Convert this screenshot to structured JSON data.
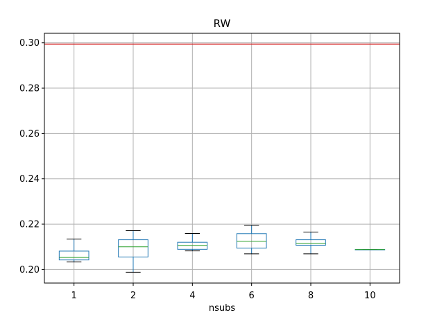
{
  "chart_data": {
    "type": "box",
    "title": "RW",
    "xlabel": "nsubs",
    "ylabel": "",
    "categories": [
      "1",
      "2",
      "4",
      "6",
      "8",
      "10"
    ],
    "ylim": [
      0.194,
      0.3042
    ],
    "yticks": [
      0.2,
      0.22,
      0.24,
      0.26,
      0.28,
      0.3
    ],
    "ytick_labels": [
      "0.20",
      "0.22",
      "0.24",
      "0.26",
      "0.28",
      "0.30"
    ],
    "grid": true,
    "boxes": [
      {
        "category": "1",
        "whisker_low": 0.2033,
        "q1": 0.2042,
        "median": 0.2053,
        "q3": 0.2081,
        "whisker_high": 0.2134
      },
      {
        "category": "2",
        "whisker_low": 0.1988,
        "q1": 0.2055,
        "median": 0.21,
        "q3": 0.2131,
        "whisker_high": 0.2171
      },
      {
        "category": "4",
        "whisker_low": 0.2082,
        "q1": 0.2089,
        "median": 0.2106,
        "q3": 0.212,
        "whisker_high": 0.2159
      },
      {
        "category": "6",
        "whisker_low": 0.2069,
        "q1": 0.2094,
        "median": 0.2124,
        "q3": 0.2158,
        "whisker_high": 0.2195
      },
      {
        "category": "8",
        "whisker_low": 0.2069,
        "q1": 0.2107,
        "median": 0.2116,
        "q3": 0.2131,
        "whisker_high": 0.2165
      },
      {
        "category": "10",
        "whisker_low": 0.2088,
        "q1": 0.2088,
        "median": 0.2088,
        "q3": 0.2088,
        "whisker_high": 0.2088
      }
    ],
    "reference_line": {
      "y": 0.2994,
      "color": "#d62728"
    },
    "colors": {
      "box": "#1f77b4",
      "median": "#2ca02c",
      "whisker": "#000000",
      "grid": "#b0b0b0",
      "axes": "#000000"
    }
  }
}
